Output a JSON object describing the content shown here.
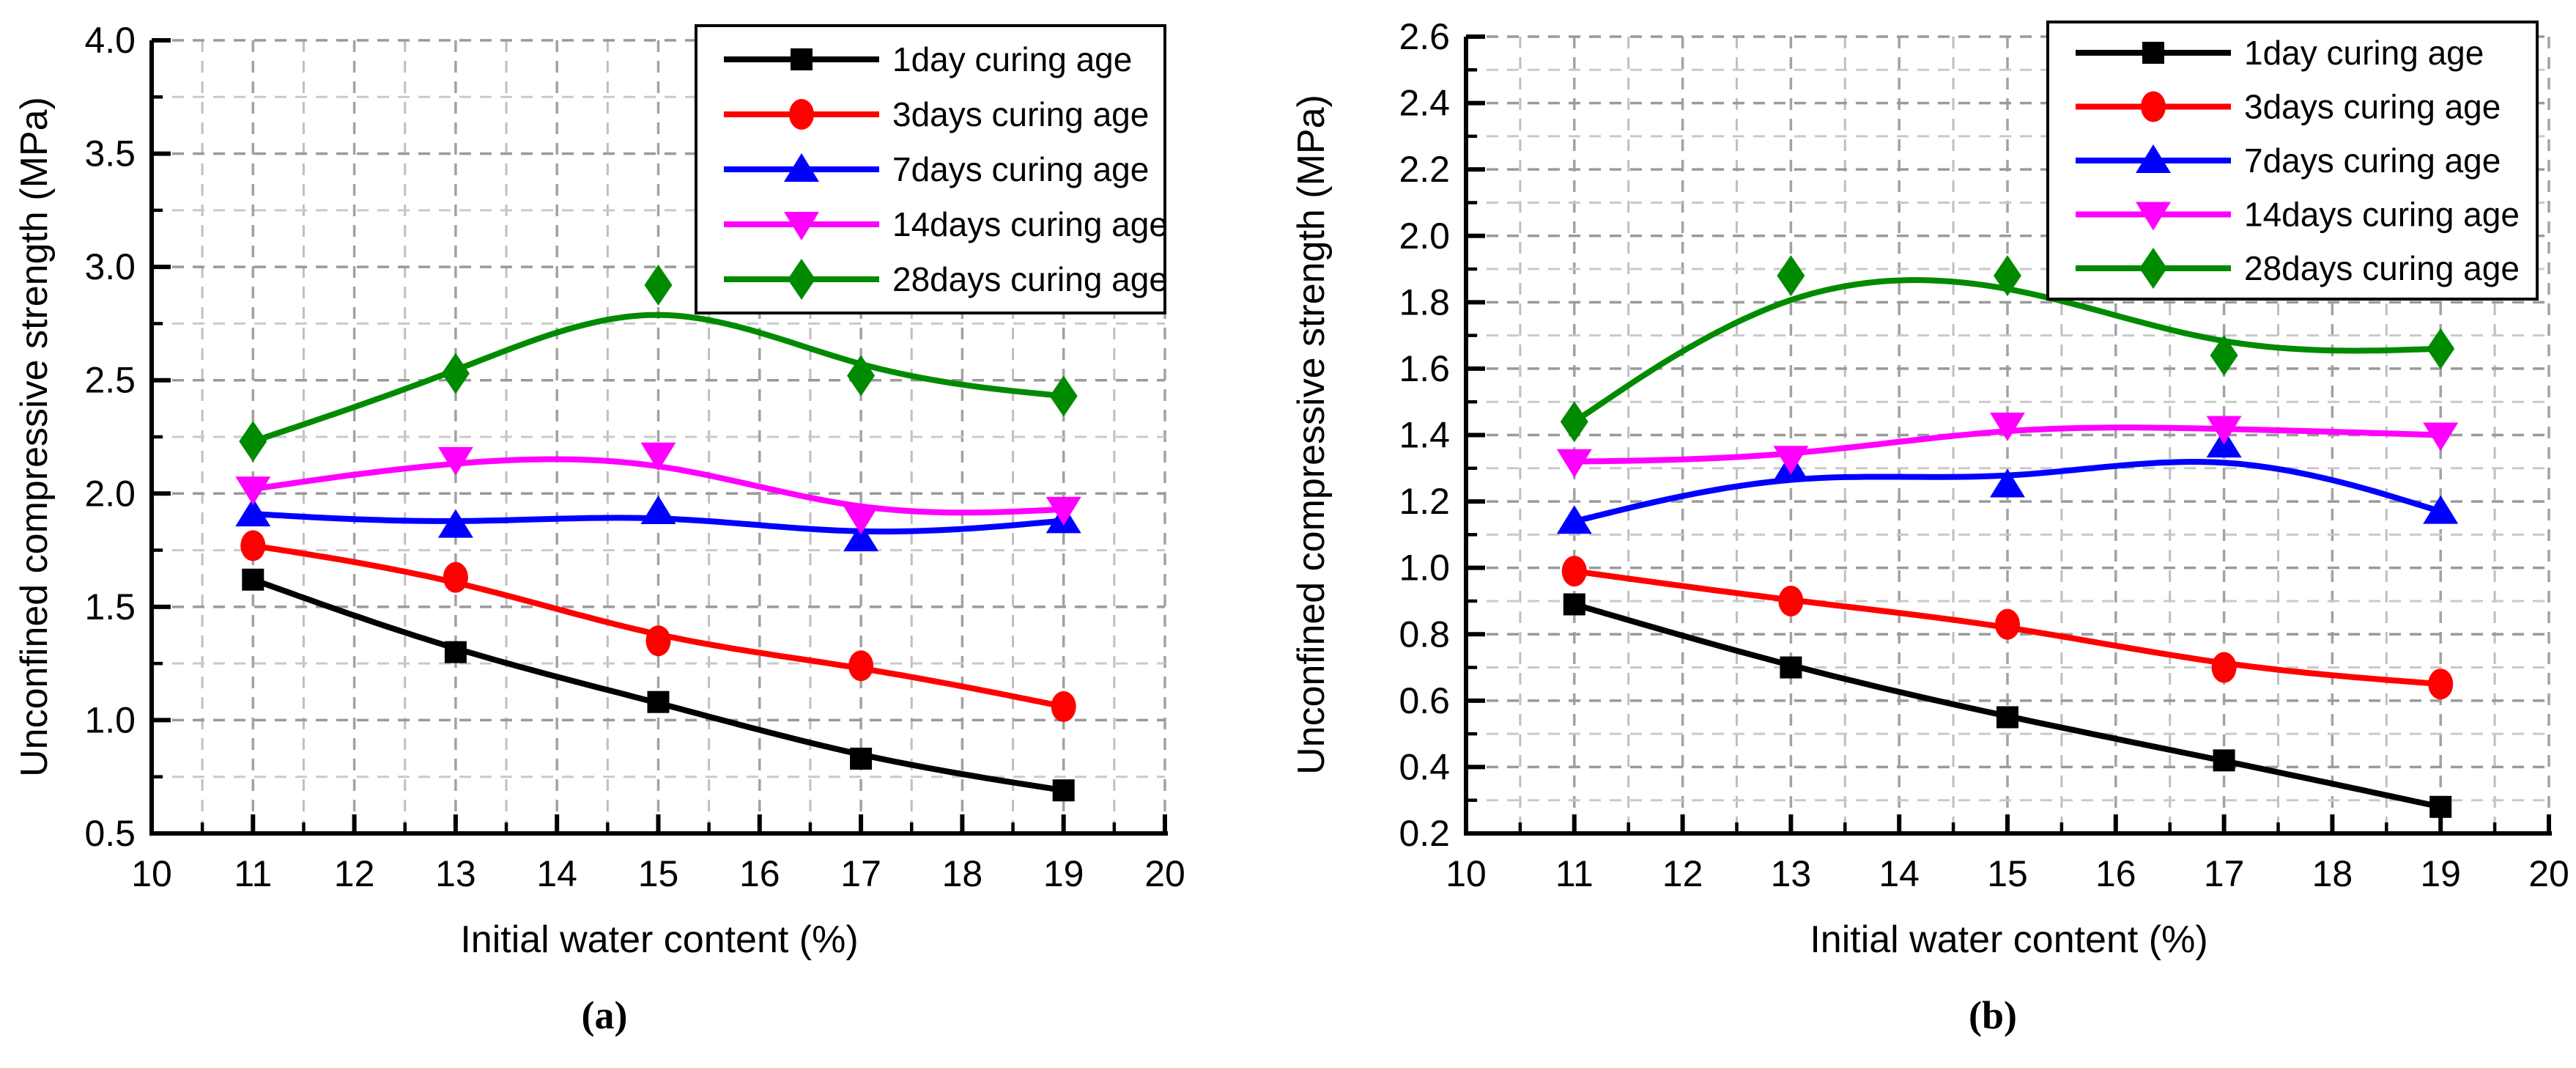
{
  "chart_data": [
    {
      "id": "a",
      "type": "line",
      "title": "",
      "caption": "(a)",
      "xlabel": "Initial water content (%)",
      "ylabel": "Unconfined compressive strength (MPa)",
      "x": [
        11,
        13,
        15,
        17,
        19
      ],
      "xlim": [
        10,
        20
      ],
      "x_major_step": 1,
      "x_minor_step": 0.5,
      "x_tick_labels": [
        "10",
        "11",
        "12",
        "13",
        "14",
        "15",
        "16",
        "17",
        "18",
        "19",
        "20"
      ],
      "ylim": [
        0.5,
        4.0
      ],
      "y_major_step": 0.5,
      "y_minor_step": 0.25,
      "y_tick_labels": [
        "0.5",
        "1.0",
        "1.5",
        "2.0",
        "2.5",
        "3.0",
        "3.5",
        "4.0"
      ],
      "grid": "dashed",
      "legend_position": "top-right",
      "series": [
        {
          "name": "1day curing age",
          "color": "#000000",
          "marker": "square-icon",
          "values": [
            1.62,
            1.3,
            1.08,
            0.83,
            0.69
          ]
        },
        {
          "name": "3days curing age",
          "color": "#ff0000",
          "marker": "circle-icon",
          "values": [
            1.77,
            1.63,
            1.35,
            1.24,
            1.06
          ]
        },
        {
          "name": "7days curing age",
          "color": "#0000ff",
          "marker": "triangle-up-icon",
          "values": [
            1.91,
            1.86,
            1.92,
            1.8,
            1.88
          ]
        },
        {
          "name": "14days curing age",
          "color": "#ff00ff",
          "marker": "triangle-down-icon",
          "values": [
            2.02,
            2.15,
            2.17,
            1.89,
            1.93
          ]
        },
        {
          "name": "28days curing age",
          "color": "#008a00",
          "marker": "diamond-icon",
          "values": [
            2.23,
            2.53,
            2.92,
            2.52,
            2.43
          ]
        }
      ]
    },
    {
      "id": "b",
      "type": "line",
      "title": "",
      "caption": "(b)",
      "xlabel": "Initial water content (%)",
      "ylabel": "Unconfined compressive strength (MPa)",
      "x": [
        11,
        13,
        15,
        17,
        19
      ],
      "xlim": [
        10,
        20
      ],
      "x_major_step": 1,
      "x_minor_step": 0.5,
      "x_tick_labels": [
        "10",
        "11",
        "12",
        "13",
        "14",
        "15",
        "16",
        "17",
        "18",
        "19",
        "20"
      ],
      "ylim": [
        0.2,
        2.6
      ],
      "y_major_step": 0.2,
      "y_minor_step": 0.1,
      "y_tick_labels": [
        "0.2",
        "0.4",
        "0.6",
        "0.8",
        "1.0",
        "1.2",
        "1.4",
        "1.6",
        "1.8",
        "2.0",
        "2.2",
        "2.4",
        "2.6"
      ],
      "grid": "dashed",
      "legend_position": "top-right",
      "series": [
        {
          "name": "1day curing age",
          "color": "#000000",
          "marker": "square-icon",
          "values": [
            0.89,
            0.7,
            0.55,
            0.42,
            0.28
          ]
        },
        {
          "name": "3days curing age",
          "color": "#ff0000",
          "marker": "circle-icon",
          "values": [
            0.99,
            0.9,
            0.83,
            0.7,
            0.65
          ]
        },
        {
          "name": "7days curing age",
          "color": "#0000ff",
          "marker": "triangle-up-icon",
          "values": [
            1.14,
            1.3,
            1.25,
            1.37,
            1.17
          ]
        },
        {
          "name": "14days curing age",
          "color": "#ff00ff",
          "marker": "triangle-down-icon",
          "values": [
            1.32,
            1.33,
            1.43,
            1.42,
            1.4
          ]
        },
        {
          "name": "28days curing age",
          "color": "#008a00",
          "marker": "diamond-icon",
          "values": [
            1.44,
            1.88,
            1.88,
            1.64,
            1.66
          ]
        }
      ]
    }
  ],
  "style": {
    "grid_major_color": "#9a9a9a",
    "grid_minor_color": "#c9c9c9",
    "grid_vert_major_color": "#a2a2a2",
    "grid_vert_minor_color": "#bfbfbf",
    "axis_color": "#000000",
    "background": "#ffffff"
  }
}
